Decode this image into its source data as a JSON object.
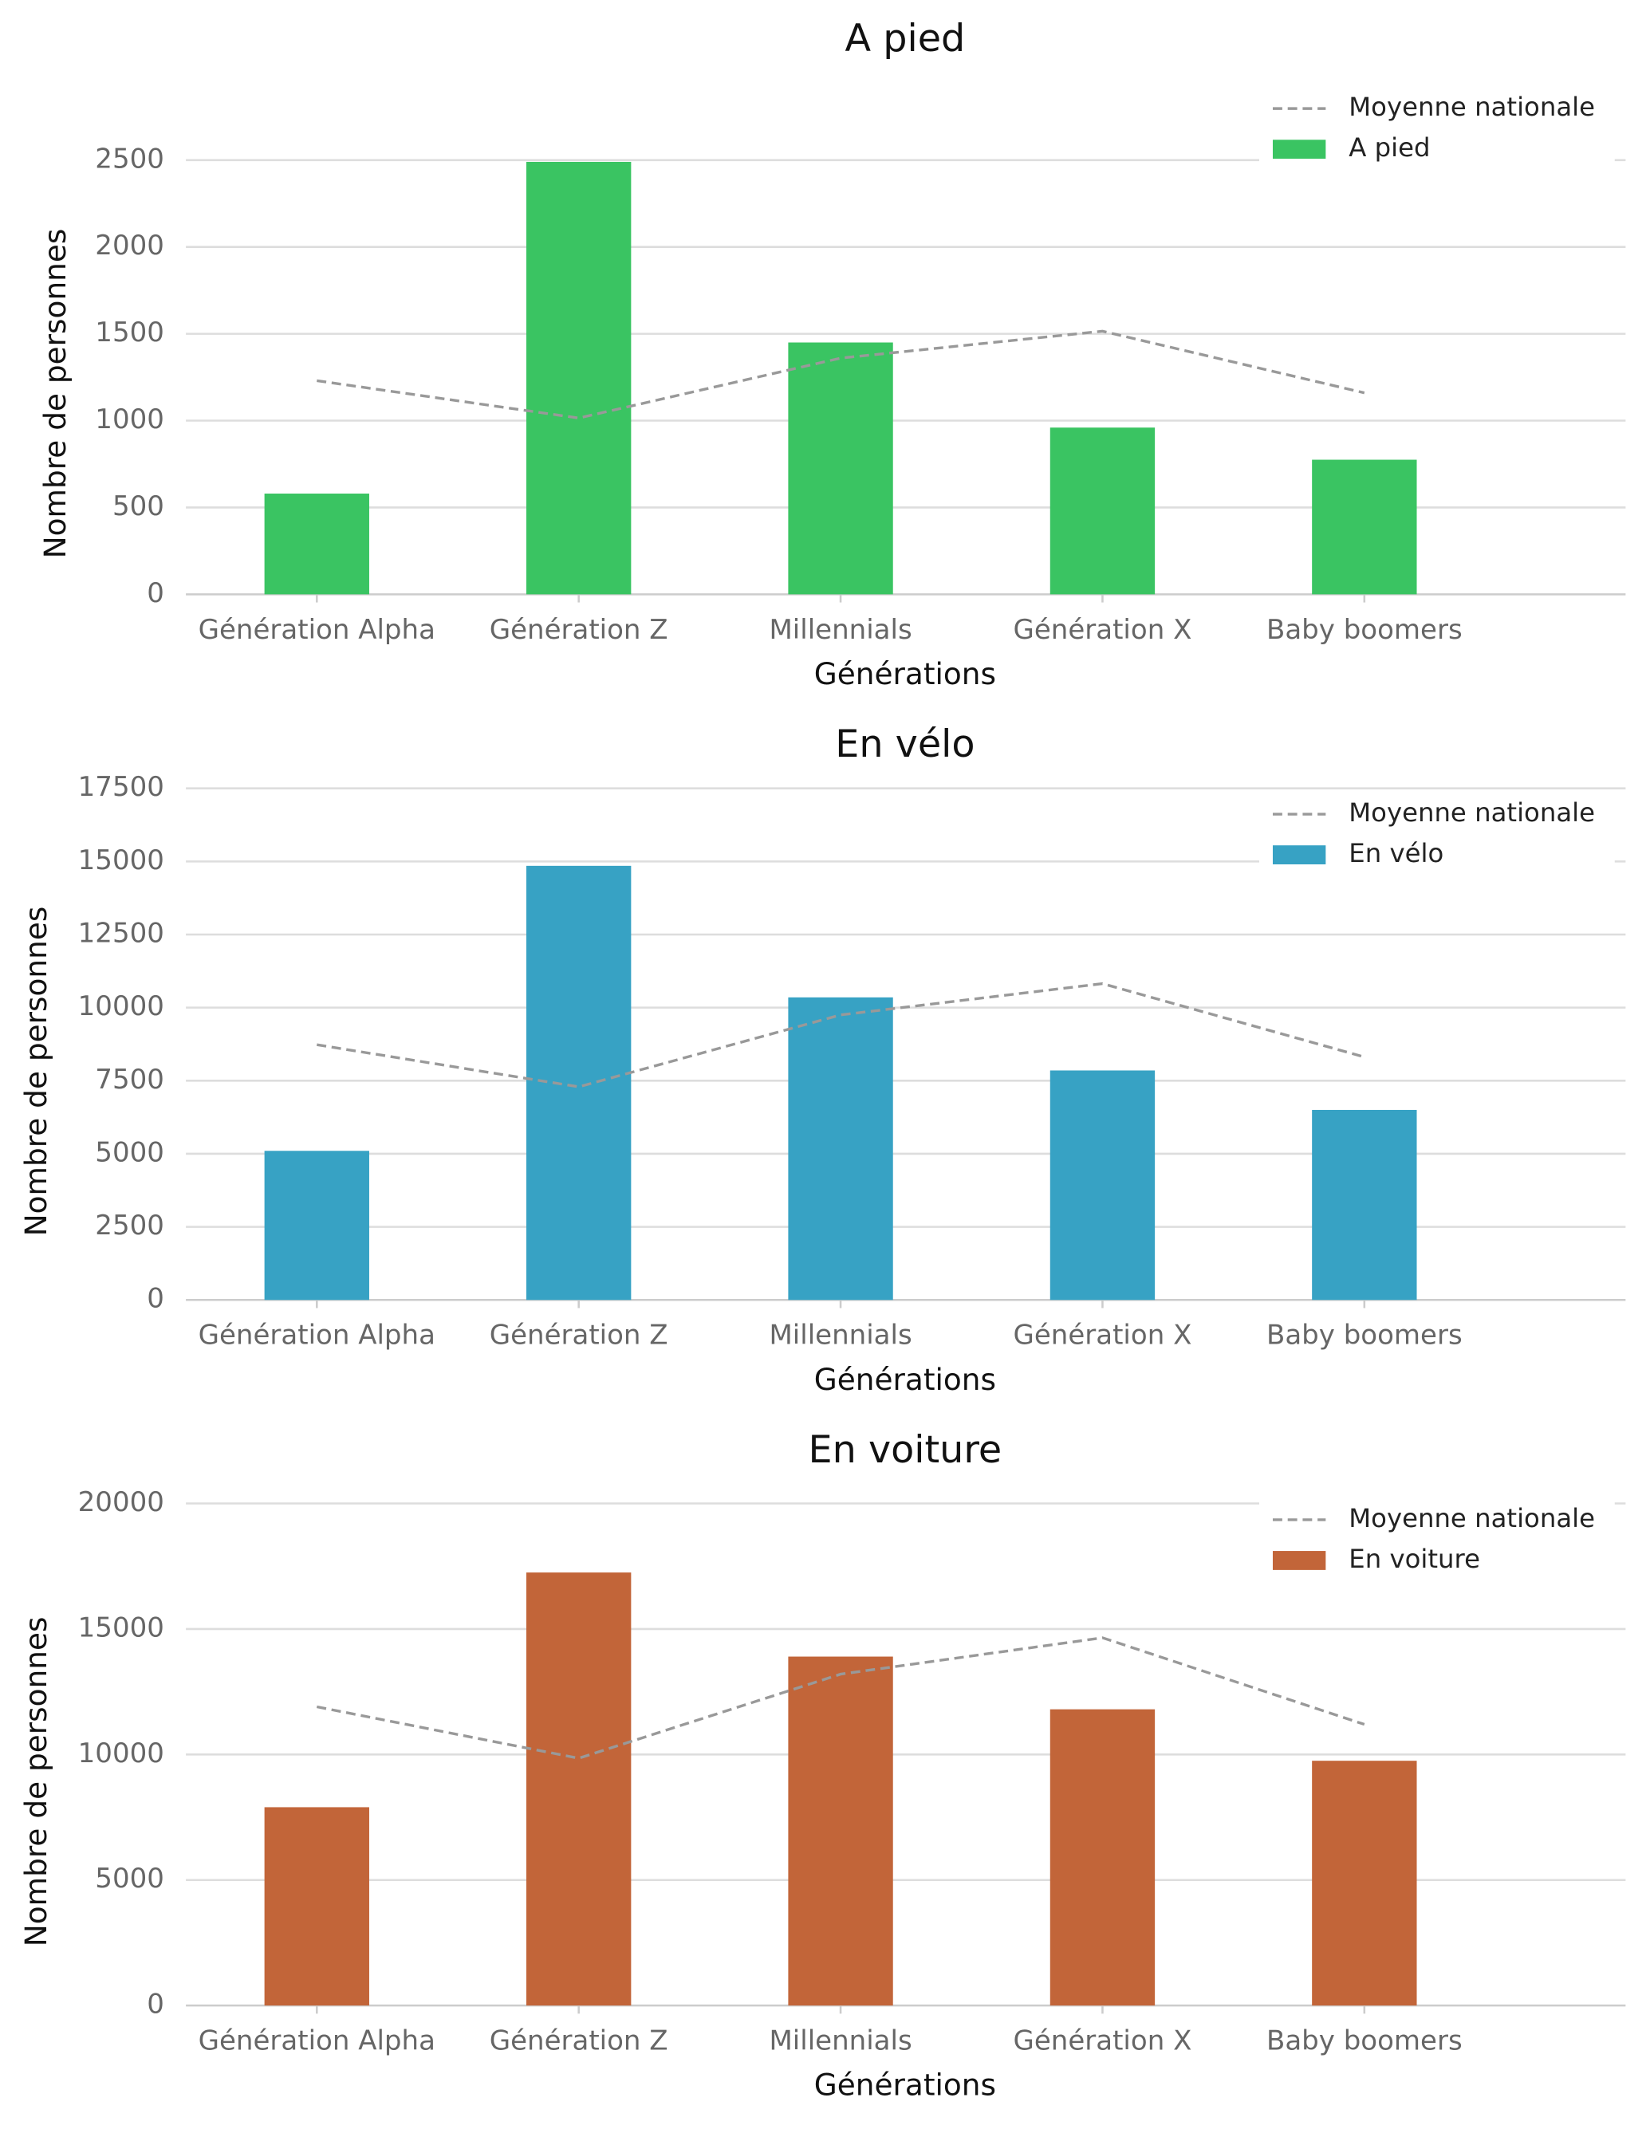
{
  "chart_data": [
    {
      "type": "bar",
      "title": "A pied",
      "x_label": "Générations",
      "y_label": "Nombre de personnes",
      "categories": [
        "Génération Alpha",
        "Génération Z",
        "Millennials",
        "Génération X",
        "Baby boomers"
      ],
      "series": [
        {
          "name": "Moyenne nationale",
          "type": "line",
          "color": "#999999",
          "dashed": true,
          "values": [
            1230,
            1015,
            1360,
            1515,
            1160
          ]
        },
        {
          "name": "A pied",
          "color": "#3ac462",
          "values": [
            580,
            2490,
            1450,
            960,
            775
          ]
        }
      ],
      "ylim": [
        0,
        2625
      ],
      "yticks": [
        0,
        500,
        1000,
        1500,
        2000,
        2500
      ],
      "grid": true,
      "legend": "upper right"
    },
    {
      "type": "bar",
      "title": "En vélo",
      "x_label": "Générations",
      "y_label": "Nombre de personnes",
      "categories": [
        "Génération Alpha",
        "Génération Z",
        "Millennials",
        "Génération X",
        "Baby boomers"
      ],
      "series": [
        {
          "name": "Moyenne nationale",
          "type": "line",
          "color": "#999999",
          "dashed": true,
          "values": [
            8730,
            7290,
            9750,
            10820,
            8310
          ]
        },
        {
          "name": "En vélo",
          "color": "#37a2c4",
          "values": [
            5100,
            14850,
            10350,
            7850,
            6500
          ]
        }
      ],
      "ylim": [
        0,
        17500
      ],
      "yticks": [
        0,
        2500,
        5000,
        7500,
        10000,
        12500,
        15000,
        17500
      ],
      "grid": true,
      "legend": "upper right"
    },
    {
      "type": "bar",
      "title": "En voiture",
      "x_label": "Générations",
      "y_label": "Nombre de personnes",
      "categories": [
        "Génération Alpha",
        "Génération Z",
        "Millennials",
        "Génération X",
        "Baby boomers"
      ],
      "series": [
        {
          "name": "Moyenne nationale",
          "type": "line",
          "color": "#999999",
          "dashed": true,
          "values": [
            11900,
            9850,
            13200,
            14650,
            11200
          ]
        },
        {
          "name": "En voiture",
          "color": "#c26539",
          "values": [
            7900,
            17250,
            13900,
            11800,
            9750
          ]
        }
      ],
      "ylim": [
        0,
        20000
      ],
      "yticks": [
        0,
        5000,
        10000,
        15000,
        20000
      ],
      "grid": true,
      "legend": "upper right"
    }
  ]
}
